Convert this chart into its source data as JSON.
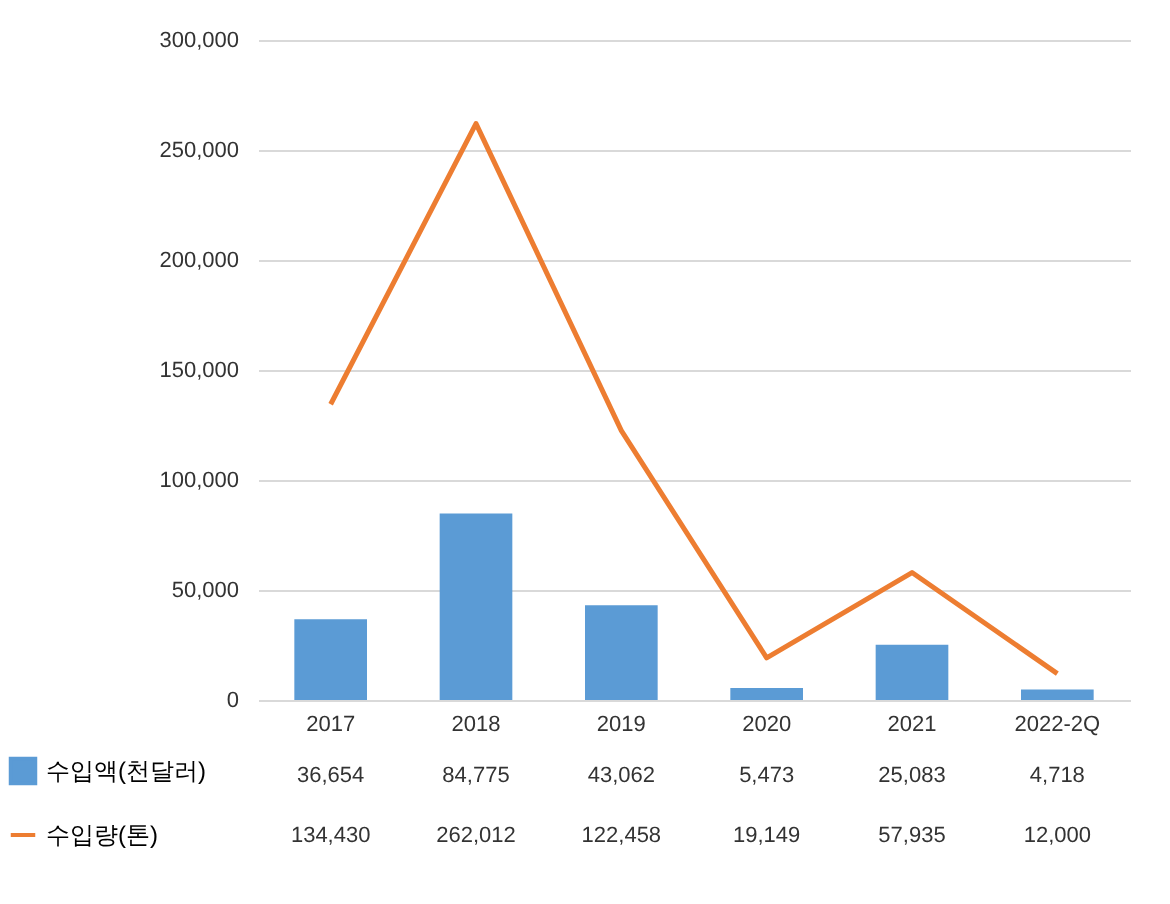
{
  "chart_data": {
    "type": "bar",
    "categories": [
      "2017",
      "2018",
      "2019",
      "2020",
      "2021",
      "2022-2Q"
    ],
    "series": [
      {
        "name": "수입액(천달러)",
        "color": "#5b9bd5",
        "values": [
          36654,
          84775,
          43062,
          5473,
          25083,
          4718
        ],
        "value_labels": [
          "36,654",
          "84,775",
          "43,062",
          "5,473",
          "25,083",
          "4,718"
        ]
      },
      {
        "name": "수입량(톤)",
        "type": "line",
        "color": "#ed7d31",
        "values": [
          134430,
          262012,
          122458,
          19149,
          57935,
          12000
        ],
        "value_labels": [
          "134,430",
          "262,012",
          "122,458",
          "19,149",
          "57,935",
          "12,000"
        ]
      }
    ],
    "ylim": [
      0,
      300000
    ],
    "yticks": [
      0,
      {
        "value": 50000,
        "label": "50,000"
      },
      {
        "value": 100000,
        "label": "100,000"
      },
      {
        "value": 150000,
        "label": "150,000"
      },
      {
        "value": 200000,
        "label": "200,000"
      },
      {
        "value": 250000,
        "label": "250,000"
      },
      {
        "value": 300000,
        "label": "300,000"
      }
    ],
    "grid": "y",
    "legend": "bottom"
  }
}
